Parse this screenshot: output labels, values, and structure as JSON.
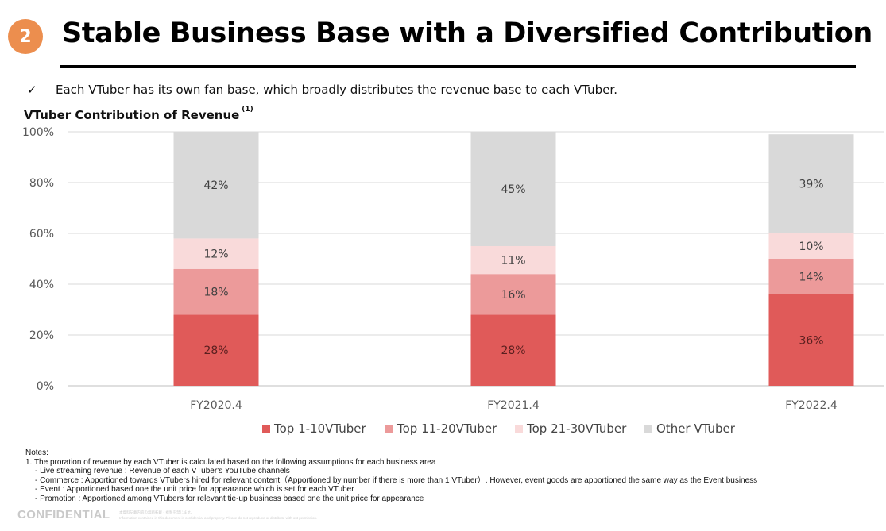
{
  "header": {
    "section_number": "2",
    "title": "Stable Business Base with a Diversified Contribution"
  },
  "bullet": {
    "check": "✓",
    "text": "Each VTuber has its own fan base, which broadly distributes the revenue base to each VTuber."
  },
  "chart_title": {
    "text": "VTuber Contribution of Revenue",
    "note_ref": "(1)"
  },
  "chart_data": {
    "type": "bar",
    "stacked": true,
    "title": "VTuber Contribution of Revenue",
    "xlabel": "",
    "ylabel": "",
    "ylim": [
      0,
      100
    ],
    "yticks": [
      "0%",
      "20%",
      "40%",
      "60%",
      "80%",
      "100%"
    ],
    "categories": [
      "FY2020.4",
      "FY2021.4",
      "FY2022.4"
    ],
    "grid": true,
    "legend_position": "bottom",
    "series": [
      {
        "name": "Top 1-10VTuber",
        "color": "#E05A59",
        "values": [
          28,
          28,
          36
        ],
        "labels": [
          "28%",
          "28%",
          "36%"
        ]
      },
      {
        "name": "Top 11-20VTuber",
        "color": "#EC9A9A",
        "values": [
          18,
          16,
          14
        ],
        "labels": [
          "18%",
          "16%",
          "14%"
        ]
      },
      {
        "name": "Top 21-30VTuber",
        "color": "#F9DADA",
        "values": [
          12,
          11,
          10
        ],
        "labels": [
          "12%",
          "11%",
          "10%"
        ]
      },
      {
        "name": "Other VTuber",
        "color": "#D9D9D9",
        "values": [
          42,
          45,
          39
        ],
        "labels": [
          "42%",
          "45%",
          "39%"
        ]
      }
    ]
  },
  "notes": {
    "heading": "Notes:",
    "item1": "1. The proration of revenue by each VTuber is calculated based on the following assumptions for each business area",
    "subitems": [
      "-   Live streaming revenue : Revenue of each VTuber's YouTube channels",
      "-   Commerce : Apportioned towards VTubers hired for relevant content（Apportioned by number if there is more than 1 VTuber）. However, event goods are apportioned the same way as the Event business",
      "-   Event : Apportioned based one the unit price for appearance which is set for each VTuber",
      "-   Promotion : Apportioned among VTubers for relevant tie-up business based one the unit price for appearance"
    ]
  },
  "footer": {
    "confidential": "CONFIDENTIAL",
    "fineprint_line1": "本資料記載内容の無断転載・複製を禁じます。",
    "fineprint_line2": "Information contained in this document is confidential and property. Please do not reproduce or distribute with out permission."
  }
}
